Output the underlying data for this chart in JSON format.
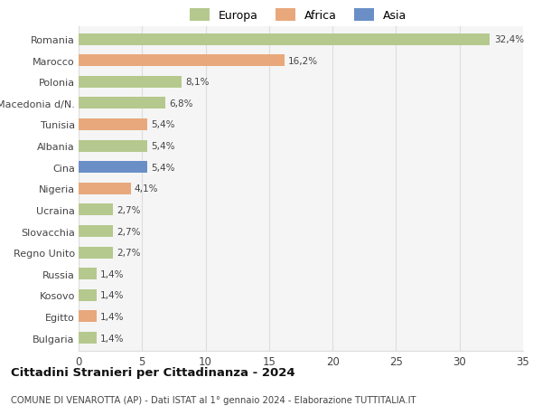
{
  "categories": [
    "Bulgaria",
    "Egitto",
    "Kosovo",
    "Russia",
    "Regno Unito",
    "Slovacchia",
    "Ucraina",
    "Nigeria",
    "Cina",
    "Albania",
    "Tunisia",
    "Macedonia d/N.",
    "Polonia",
    "Marocco",
    "Romania"
  ],
  "values": [
    1.4,
    1.4,
    1.4,
    1.4,
    2.7,
    2.7,
    2.7,
    4.1,
    5.4,
    5.4,
    5.4,
    6.8,
    8.1,
    16.2,
    32.4
  ],
  "colors": [
    "#b5c98e",
    "#e8a87c",
    "#b5c98e",
    "#b5c98e",
    "#b5c98e",
    "#b5c98e",
    "#b5c98e",
    "#e8a87c",
    "#6a8fc7",
    "#b5c98e",
    "#e8a87c",
    "#b5c98e",
    "#b5c98e",
    "#e8a87c",
    "#b5c98e"
  ],
  "labels": [
    "1,4%",
    "1,4%",
    "1,4%",
    "1,4%",
    "2,7%",
    "2,7%",
    "2,7%",
    "4,1%",
    "5,4%",
    "5,4%",
    "5,4%",
    "6,8%",
    "8,1%",
    "16,2%",
    "32,4%"
  ],
  "legend": [
    {
      "label": "Europa",
      "color": "#b5c98e"
    },
    {
      "label": "Africa",
      "color": "#e8a87c"
    },
    {
      "label": "Asia",
      "color": "#6a8fc7"
    }
  ],
  "xlim": [
    0,
    35
  ],
  "xticks": [
    0,
    5,
    10,
    15,
    20,
    25,
    30,
    35
  ],
  "title": "Cittadini Stranieri per Cittadinanza - 2024",
  "subtitle": "COMUNE DI VENAROTTA (AP) - Dati ISTAT al 1° gennaio 2024 - Elaborazione TUTTITALIA.IT",
  "bg_color": "#ffffff",
  "plot_bg_color": "#f5f5f5",
  "grid_color": "#dddddd",
  "bar_height": 0.55
}
